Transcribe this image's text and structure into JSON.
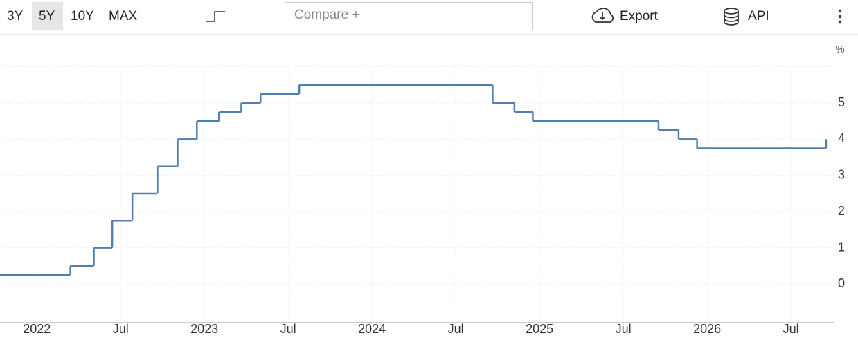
{
  "toolbar": {
    "ranges": [
      "3Y",
      "5Y",
      "10Y",
      "MAX"
    ],
    "active_range": "5Y",
    "compare_placeholder": "Compare +",
    "export": "Export",
    "api": "API"
  },
  "chart_data": {
    "type": "line",
    "step": "after",
    "unit_label": "%",
    "color": "#4e7fb0",
    "grid": true,
    "x": [
      2021.78,
      2022.2,
      2022.34,
      2022.45,
      2022.57,
      2022.72,
      2022.84,
      2022.955,
      2023.087,
      2023.22,
      2023.335,
      2023.566,
      2024.72,
      2024.85,
      2024.96,
      2025.71,
      2025.83,
      2025.94,
      2026.71
    ],
    "values": [
      0.25,
      0.5,
      1,
      1.75,
      2.5,
      3.25,
      4,
      4.5,
      4.75,
      5,
      5.25,
      5.5,
      5,
      4.75,
      4.5,
      4.25,
      4,
      3.75,
      4
    ],
    "xlim": [
      2021.78,
      2026.76
    ],
    "xticks": [
      2022,
      {
        "value": 2022.5,
        "label": "Jul"
      },
      2023,
      {
        "value": 2023.5,
        "label": "Jul"
      },
      2024,
      {
        "value": 2024.5,
        "label": "Jul"
      },
      2025,
      {
        "value": 2025.5,
        "label": "Jul"
      },
      2026,
      {
        "value": 2026.5,
        "label": "Jul"
      }
    ],
    "ylim": [
      -1,
      6
    ],
    "yticks": [
      0,
      1,
      2,
      3,
      4,
      5
    ]
  }
}
